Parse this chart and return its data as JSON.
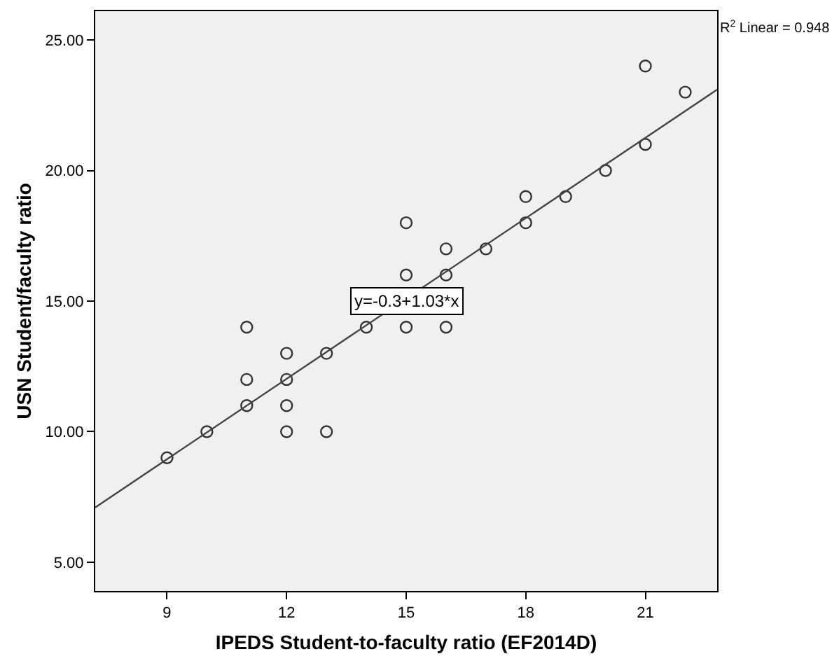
{
  "chart_data": {
    "type": "scatter",
    "xlabel": "IPEDS Student-to-faculty ratio (EF2014D)",
    "ylabel": "USN Student/faculty ratio",
    "series": [
      {
        "marker": "circle",
        "color": "#333333",
        "x": [
          9,
          10,
          11,
          11,
          11,
          12,
          12,
          12,
          12,
          13,
          13,
          14,
          15,
          15,
          15,
          16,
          16,
          16,
          17,
          18,
          18,
          19,
          20,
          21,
          21,
          22
        ],
        "values": [
          9,
          10,
          11,
          12,
          14,
          10,
          11,
          12,
          13,
          10,
          13,
          14,
          14,
          16,
          18,
          14,
          16,
          17,
          17,
          18,
          19,
          19,
          20,
          21,
          24,
          23
        ]
      },
      {
        "type": "line",
        "marker": "none",
        "color": "#444444",
        "x": [
          7.2,
          22.8
        ],
        "values": [
          7.1,
          23.1
        ]
      }
    ],
    "xlim": [
      7.2,
      22.8
    ],
    "xticks": [
      9,
      12,
      15,
      18,
      21
    ],
    "ylim": [
      3.9,
      26.1
    ],
    "yticks": [
      {
        "value": 5,
        "label": "5.00"
      },
      {
        "value": 10,
        "label": "10.00"
      },
      {
        "value": 15,
        "label": "15.00"
      },
      {
        "value": 20,
        "label": "20.00"
      },
      {
        "value": 25,
        "label": "25.00"
      }
    ],
    "annotations": [
      "R$^{2}$ Linear = 0.948",
      {
        "text": "y=-0.3+1.03*x",
        "x": 15,
        "y": 15
      }
    ],
    "line_style": "solid",
    "grid": false
  }
}
